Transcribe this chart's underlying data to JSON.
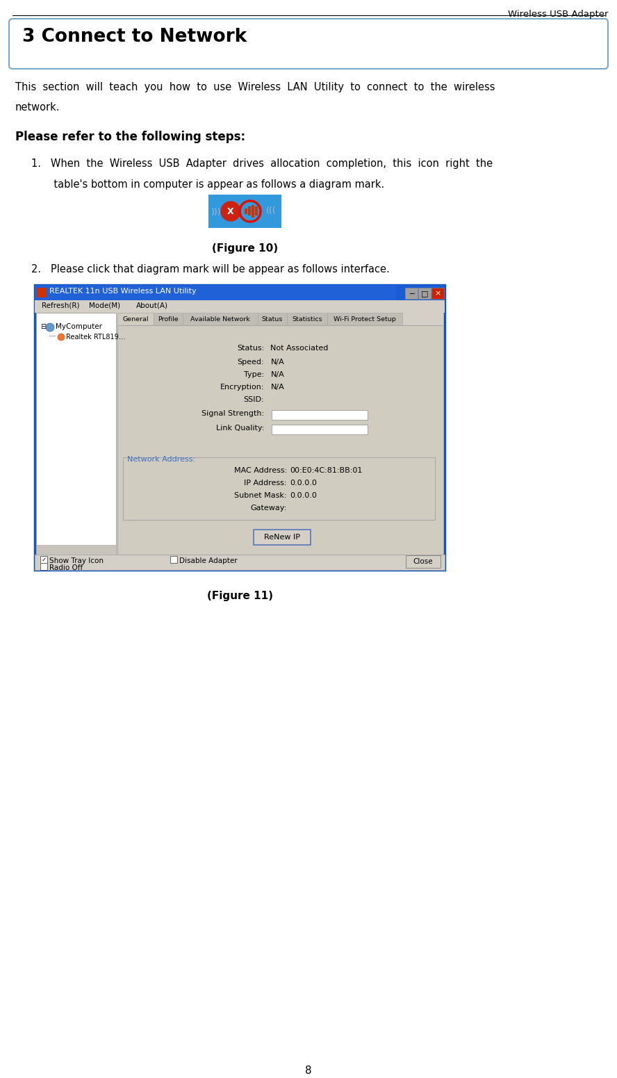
{
  "page_title": "Wireless USB Adapter",
  "section_title": "3 Connect to Network",
  "intro_line1": "This  section  will  teach  you  how  to  use  Wireless  LAN  Utility  to  connect  to  the  wireless",
  "intro_line2": "network.",
  "steps_header": "Please refer to the following steps:",
  "step1_text1": "1.   When  the  Wireless  USB  Adapter  drives  allocation  completion,  this  icon  right  the",
  "step1_text2": "       table's bottom in computer is appear as follows a diagram mark.",
  "figure10_caption": "(Figure 10)",
  "step2_text": "2.   Please click that diagram mark will be appear as follows interface.",
  "figure11_caption": "(Figure 11)",
  "page_number": "8",
  "bg_color": "#ffffff",
  "text_color": "#000000",
  "box_border_color": "#7ba7c9",
  "win_title_color": "#1a4dc8",
  "win_bg_color": "#d4d0c8",
  "content_bg": "#d0ccbf",
  "net_box_border": "#3b6fc4",
  "left_panel_bg": "#ffffff",
  "tab_active_bg": "#d0ccbf",
  "tab_inactive_bg": "#c0bdb5",
  "field_bg": "#ffffff",
  "btn_bg": "#d4d0c8"
}
